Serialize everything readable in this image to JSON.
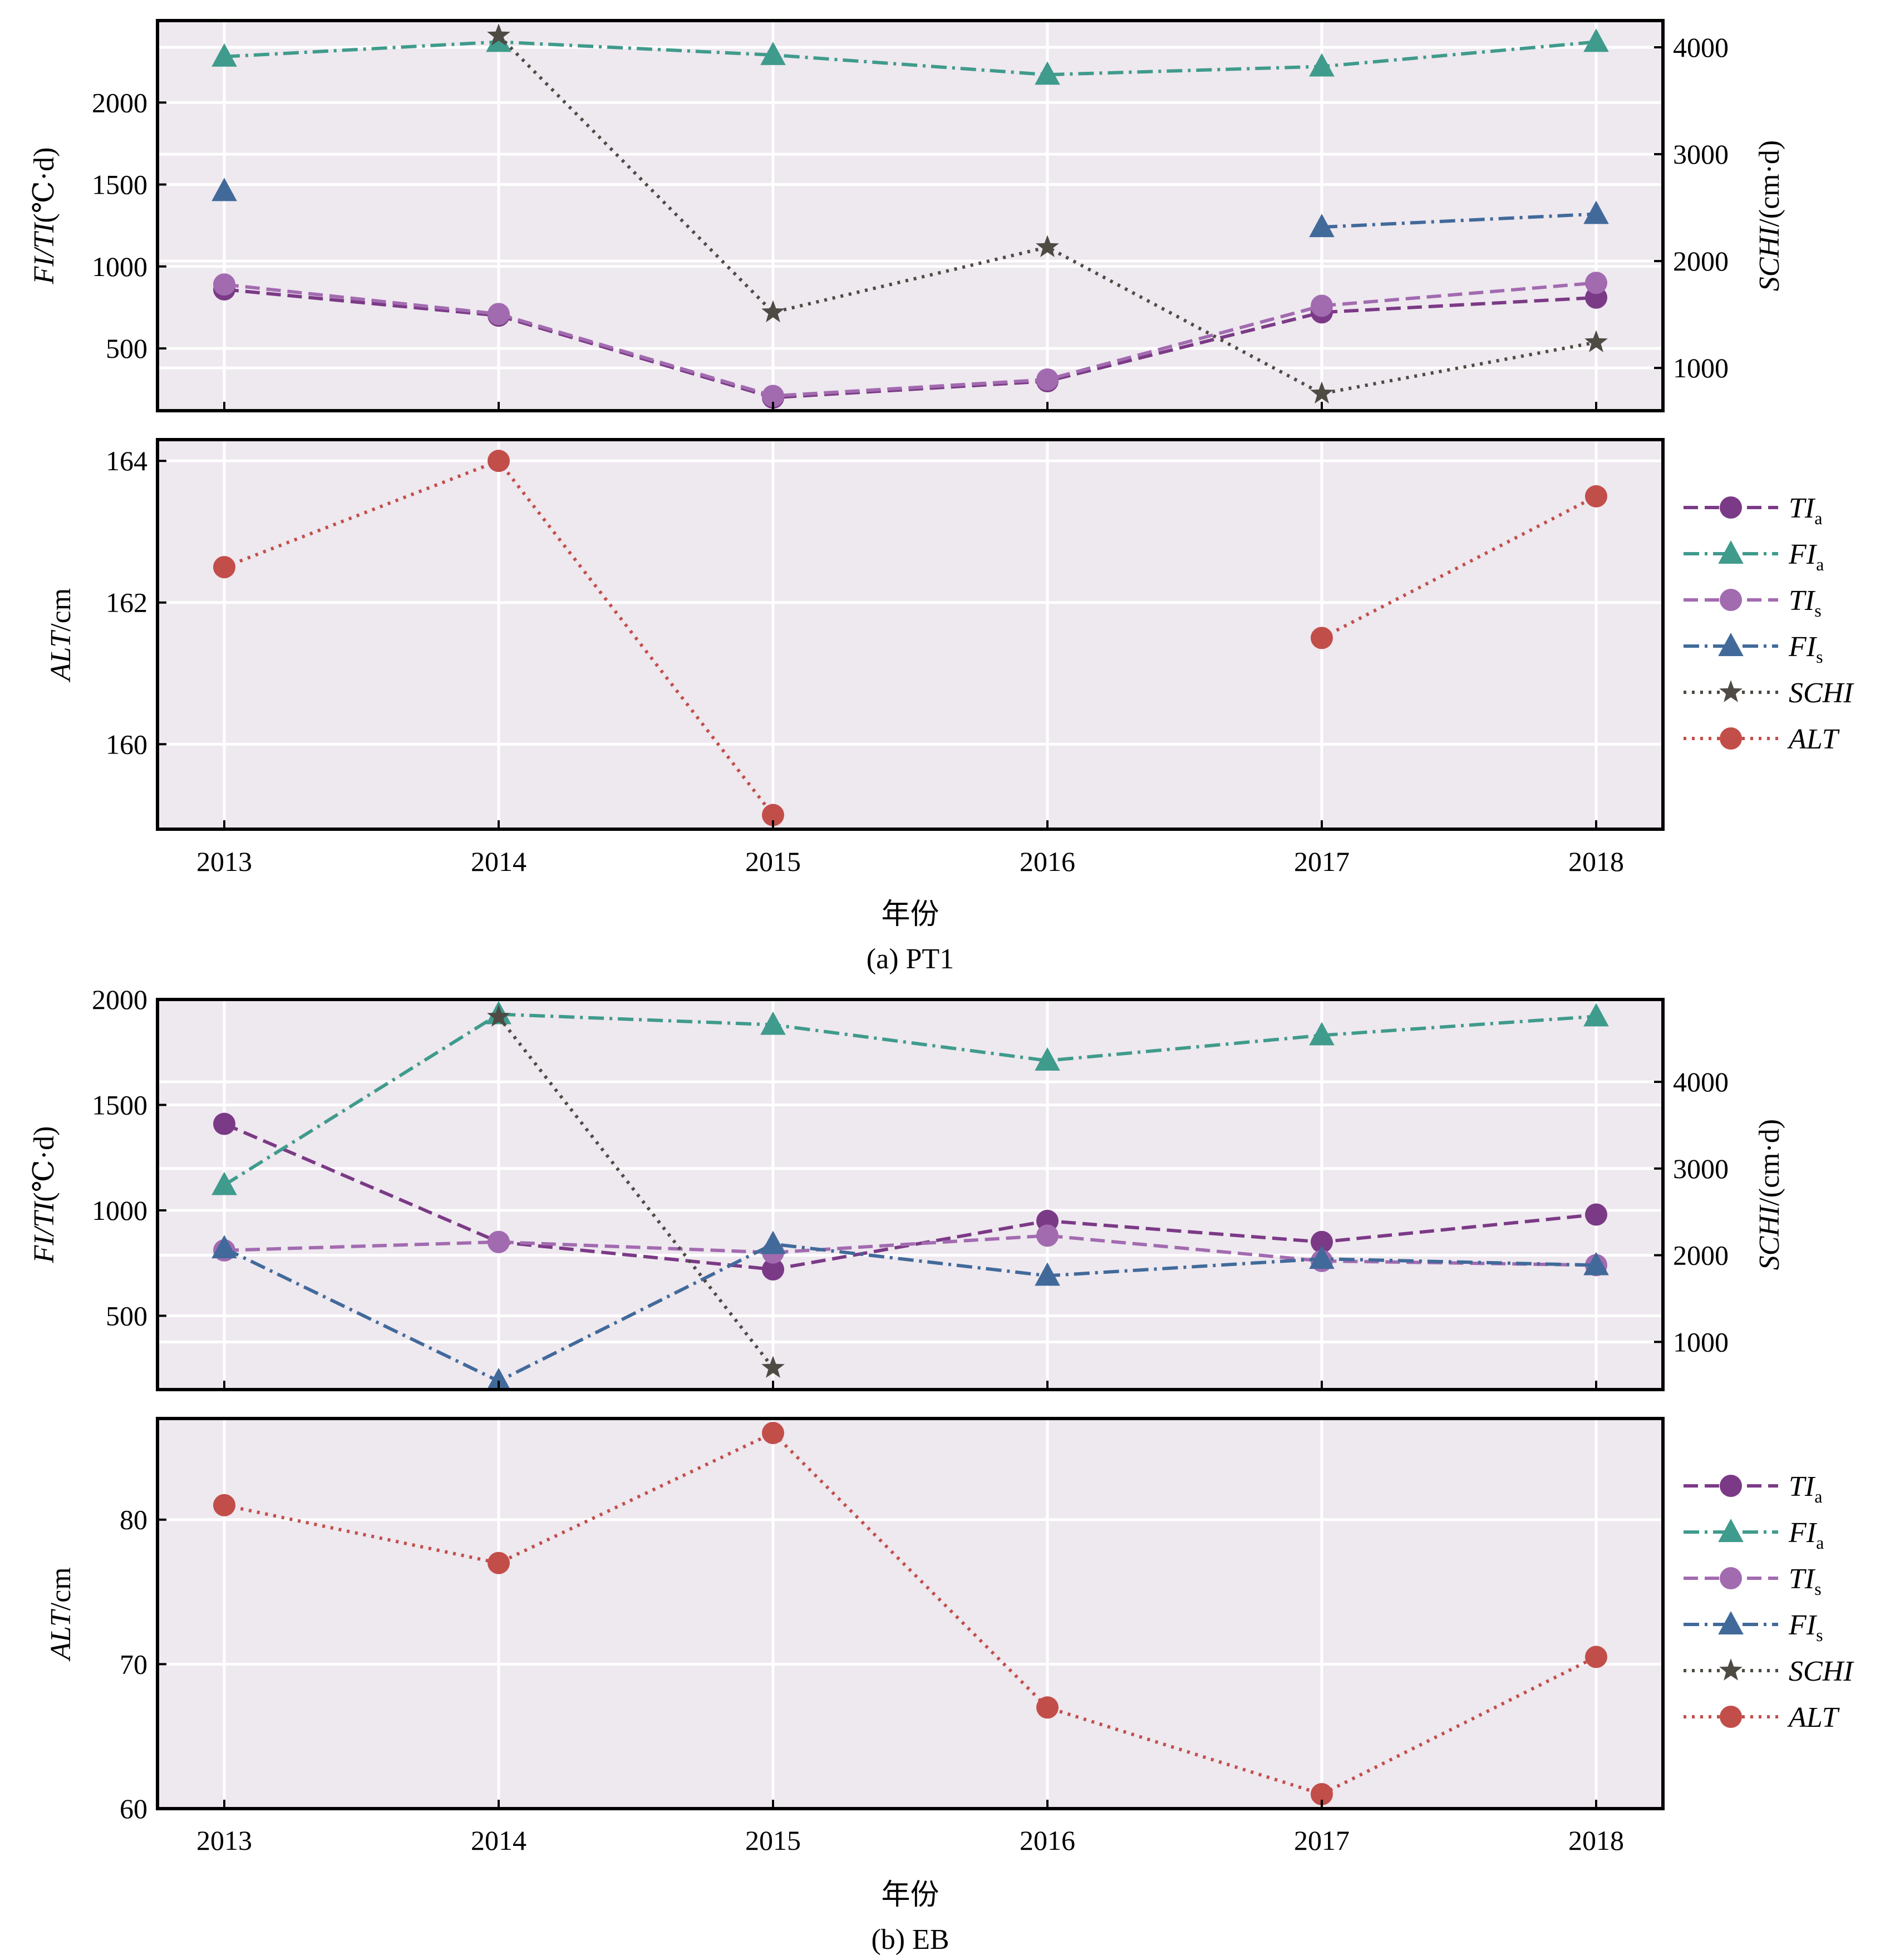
{
  "colors": {
    "plot_bg": "#EEE8EF",
    "grid": "#FFFFFF",
    "TIa": "#7B3A86",
    "FIa": "#3F9B8C",
    "TIs": "#A26BB0",
    "FIs": "#416A9A",
    "SCHI": "#4E4A44",
    "ALT": "#C24E4A"
  },
  "legend": [
    {
      "key": "TIa",
      "base": "TI",
      "sub": "a",
      "marker": "circle",
      "dash": "dashed"
    },
    {
      "key": "FIa",
      "base": "FI",
      "sub": "a",
      "marker": "triangle",
      "dash": "dashdot"
    },
    {
      "key": "TIs",
      "base": "TI",
      "sub": "s",
      "marker": "circle",
      "dash": "dashed"
    },
    {
      "key": "FIs",
      "base": "FI",
      "sub": "s",
      "marker": "triangle",
      "dash": "dashdot"
    },
    {
      "key": "SCHI",
      "base": "SCHI",
      "sub": "",
      "marker": "star",
      "dash": "dotted"
    },
    {
      "key": "ALT",
      "base": "ALT",
      "sub": "",
      "marker": "circle",
      "dash": "dotted"
    }
  ],
  "chart_data": [
    {
      "type": "line",
      "panel": "(a) PT1",
      "caption": "(a) PT1",
      "xlabel": "年份",
      "x": [
        2013,
        2014,
        2015,
        2016,
        2017,
        2018
      ],
      "top": {
        "ylabel": {
          "italic": "FI/TI",
          "rest": "(℃·d)"
        },
        "ylabel_right": {
          "italic": "SCHI",
          "rest": "/(cm·d)"
        },
        "ylim": [
          120,
          2500
        ],
        "yticks": [
          500,
          1000,
          1500,
          2000
        ],
        "ylim_right": [
          600,
          4250
        ],
        "yticks_right": [
          1000,
          2000,
          3000,
          4000
        ],
        "series": [
          {
            "key": "TIa",
            "values": [
              860,
              700,
              200,
              300,
              720,
              810
            ]
          },
          {
            "key": "FIa",
            "values": [
              2280,
              2370,
              2290,
              2170,
              2220,
              2370
            ]
          },
          {
            "key": "TIs",
            "values": [
              890,
              710,
              210,
              310,
              760,
              900
            ]
          },
          {
            "key": "FIs",
            "values": [
              1460,
              null,
              null,
              null,
              1240,
              1320
            ]
          },
          {
            "key": "SCHI",
            "axis": "right",
            "values": [
              null,
              4110,
              1520,
              2130,
              760,
              1240
            ]
          }
        ]
      },
      "bottom": {
        "ylabel": {
          "italic": "ALT",
          "rest": "/cm"
        },
        "ylim": [
          158.8,
          164.3
        ],
        "yticks": [
          160,
          162,
          164
        ],
        "series": [
          {
            "key": "ALT",
            "values": [
              162.5,
              164.0,
              159.0,
              null,
              161.5,
              163.5
            ]
          }
        ]
      }
    },
    {
      "type": "line",
      "panel": "(b) EB",
      "caption": "(b) EB",
      "xlabel": "年份",
      "x": [
        2013,
        2014,
        2015,
        2016,
        2017,
        2018
      ],
      "top": {
        "ylabel": {
          "italic": "FI/TI",
          "rest": "(℃·d)"
        },
        "ylabel_right": {
          "italic": "SCHI",
          "rest": "/(cm·d)"
        },
        "ylim": [
          150,
          2000
        ],
        "yticks": [
          500,
          1000,
          1500,
          2000
        ],
        "ylim_right": [
          450,
          4950
        ],
        "yticks_right": [
          1000,
          2000,
          3000,
          4000
        ],
        "series": [
          {
            "key": "TIa",
            "values": [
              1410,
              850,
              720,
              950,
              850,
              980
            ]
          },
          {
            "key": "FIa",
            "values": [
              1120,
              1930,
              1880,
              1710,
              1830,
              1920
            ]
          },
          {
            "key": "TIs",
            "values": [
              810,
              850,
              800,
              880,
              760,
              740
            ]
          },
          {
            "key": "FIs",
            "values": [
              820,
              190,
              840,
              690,
              770,
              740
            ]
          },
          {
            "key": "SCHI",
            "axis": "right",
            "values": [
              null,
              4750,
              700,
              null,
              null,
              null
            ]
          }
        ]
      },
      "bottom": {
        "ylabel": {
          "italic": "ALT",
          "rest": "/cm"
        },
        "ylim": [
          60,
          87
        ],
        "yticks": [
          60,
          70,
          80
        ],
        "series": [
          {
            "key": "ALT",
            "values": [
              81,
              77,
              86,
              67,
              61,
              70.5
            ]
          }
        ]
      }
    }
  ]
}
